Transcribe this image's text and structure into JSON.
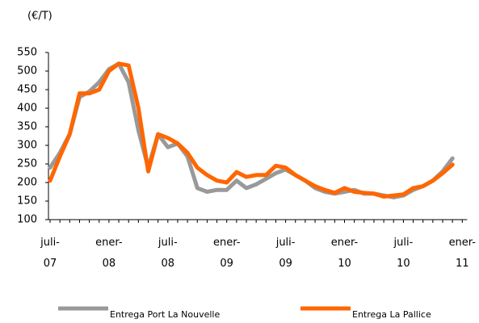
{
  "chart_data": {
    "type": "line",
    "y_label": "(€/T)",
    "categories": [
      "juli-\n07",
      null,
      null,
      null,
      null,
      null,
      "ener-\n08",
      null,
      null,
      null,
      null,
      null,
      "juli-\n08",
      null,
      null,
      null,
      null,
      null,
      "ener-\n09",
      null,
      null,
      null,
      null,
      null,
      "juli-\n09",
      null,
      null,
      null,
      null,
      null,
      "ener-\n10",
      null,
      null,
      null,
      null,
      null,
      "juli-\n10",
      null,
      null,
      null,
      null,
      null,
      "ener-\n11"
    ],
    "series": [
      {
        "name": "Entrega Port La Nouvelle",
        "color": "#999999",
        "values": [
          240,
          280,
          330,
          430,
          445,
          470,
          505,
          520,
          470,
          340,
          240,
          330,
          295,
          305,
          270,
          185,
          175,
          180,
          180,
          205,
          185,
          195,
          210,
          225,
          235,
          220,
          205,
          185,
          175,
          170,
          175,
          180,
          170,
          170,
          165,
          160,
          165,
          180,
          190,
          205,
          230,
          265,
          null
        ]
      },
      {
        "name": "Entrega La Pallice",
        "color": "#ff6600",
        "values": [
          205,
          270,
          330,
          440,
          440,
          450,
          500,
          520,
          515,
          400,
          230,
          330,
          320,
          305,
          280,
          240,
          220,
          205,
          200,
          228,
          215,
          220,
          220,
          245,
          240,
          220,
          205,
          190,
          180,
          172,
          185,
          175,
          172,
          170,
          162,
          165,
          168,
          185,
          190,
          205,
          225,
          248,
          null
        ]
      }
    ],
    "ylim": [
      100,
      550
    ],
    "yticks": [
      100,
      150,
      200,
      250,
      300,
      350,
      400,
      450,
      500,
      550
    ],
    "grid": false,
    "legend": "bottom"
  }
}
